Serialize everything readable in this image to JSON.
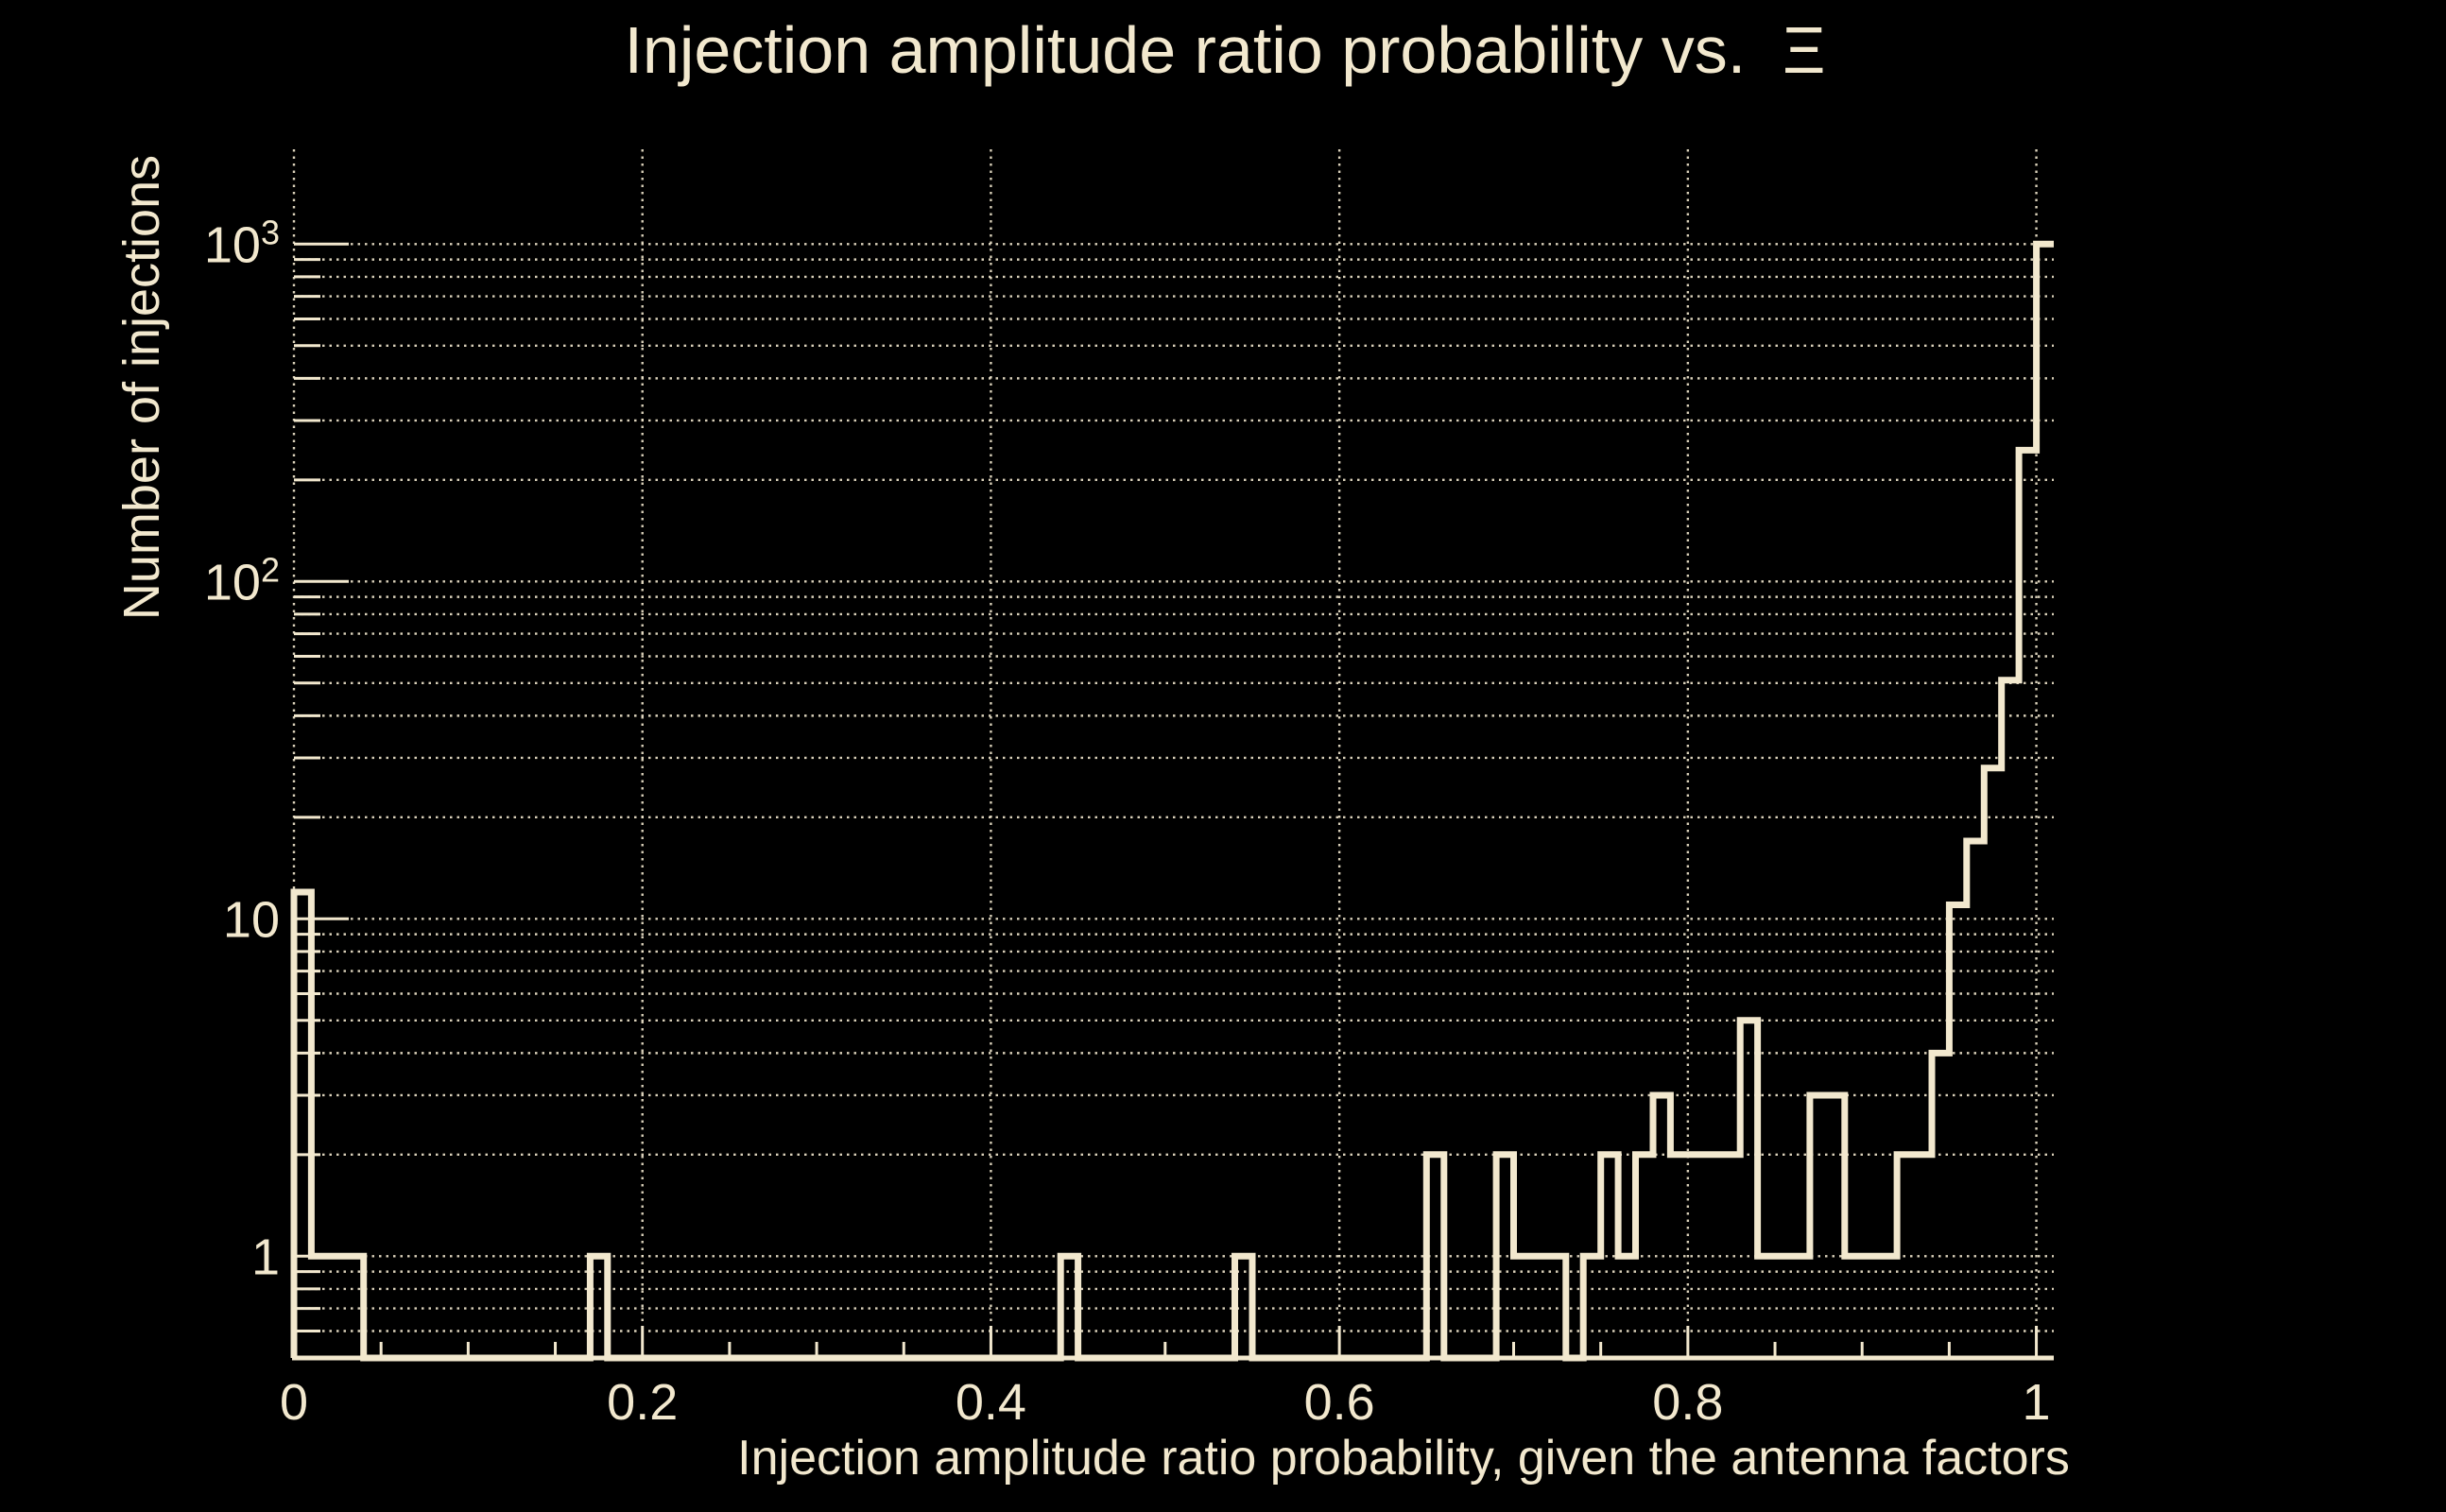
{
  "colors": {
    "background": "#000000",
    "foreground": "#f2e8ce"
  },
  "chart_data": {
    "type": "bar",
    "subtype": "step-histogram",
    "title": "Injection amplitude ratio probability vs.  Ξ",
    "xlabel": "Injection amplitude ratio probability, given the antenna factors",
    "ylabel": "Number of injections",
    "yscale": "log",
    "xlim": [
      0,
      1.01
    ],
    "ylim": [
      0.5,
      1908
    ],
    "bin_width": 0.01,
    "n_bins": 101,
    "nonzero_bins": [
      [
        0.0,
        12
      ],
      [
        0.01,
        1
      ],
      [
        0.02,
        1
      ],
      [
        0.03,
        1
      ],
      [
        0.17,
        1
      ],
      [
        0.44,
        1
      ],
      [
        0.54,
        1
      ],
      [
        0.65,
        2
      ],
      [
        0.69,
        2
      ],
      [
        0.7,
        1
      ],
      [
        0.71,
        1
      ],
      [
        0.72,
        1
      ],
      [
        0.74,
        1
      ],
      [
        0.75,
        2
      ],
      [
        0.76,
        1
      ],
      [
        0.77,
        2
      ],
      [
        0.78,
        3
      ],
      [
        0.79,
        2
      ],
      [
        0.8,
        2
      ],
      [
        0.81,
        2
      ],
      [
        0.82,
        2
      ],
      [
        0.83,
        5
      ],
      [
        0.84,
        1
      ],
      [
        0.85,
        1
      ],
      [
        0.86,
        1
      ],
      [
        0.87,
        3
      ],
      [
        0.88,
        3
      ],
      [
        0.89,
        1
      ],
      [
        0.9,
        1
      ],
      [
        0.91,
        1
      ],
      [
        0.92,
        2
      ],
      [
        0.93,
        2
      ],
      [
        0.94,
        4
      ],
      [
        0.95,
        11
      ],
      [
        0.96,
        17
      ],
      [
        0.97,
        28
      ],
      [
        0.98,
        51
      ],
      [
        0.99,
        245
      ],
      [
        1.0,
        1000
      ]
    ],
    "x_major_ticks": [
      0,
      0.2,
      0.4,
      0.6,
      0.8,
      1
    ],
    "x_major_tick_labels": [
      "0",
      "0.2",
      "0.4",
      "0.6",
      "0.8",
      "1"
    ],
    "x_minor_tick_step": 0.05,
    "y_major_ticks": [
      1,
      10,
      100,
      1000
    ],
    "y_major_tick_labels": [
      {
        "value": 1,
        "base": "1",
        "sup": ""
      },
      {
        "value": 10,
        "base": "10",
        "sup": ""
      },
      {
        "value": 100,
        "base": "10",
        "sup": "2"
      },
      {
        "value": 1000,
        "base": "10",
        "sup": "3"
      }
    ],
    "y_gridline_values": [
      0.6,
      0.7,
      0.8,
      0.9,
      1,
      2,
      3,
      4,
      5,
      6,
      7,
      8,
      9,
      10,
      20,
      30,
      40,
      50,
      60,
      70,
      80,
      90,
      100,
      200,
      300,
      400,
      500,
      600,
      700,
      800,
      900,
      1000
    ],
    "x_gridline_values": [
      0,
      0.2,
      0.4,
      0.6,
      0.8,
      1.0
    ],
    "grid_style": "dotted",
    "legend": "none"
  }
}
